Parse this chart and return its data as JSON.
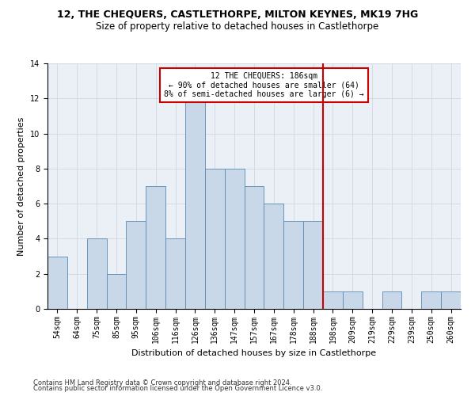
{
  "title": "12, THE CHEQUERS, CASTLETHORPE, MILTON KEYNES, MK19 7HG",
  "subtitle": "Size of property relative to detached houses in Castlethorpe",
  "xlabel": "Distribution of detached houses by size in Castlethorpe",
  "ylabel": "Number of detached properties",
  "footer_line1": "Contains HM Land Registry data © Crown copyright and database right 2024.",
  "footer_line2": "Contains public sector information licensed under the Open Government Licence v3.0.",
  "categories": [
    "54sqm",
    "64sqm",
    "75sqm",
    "85sqm",
    "95sqm",
    "106sqm",
    "116sqm",
    "126sqm",
    "136sqm",
    "147sqm",
    "157sqm",
    "167sqm",
    "178sqm",
    "188sqm",
    "198sqm",
    "209sqm",
    "219sqm",
    "229sqm",
    "239sqm",
    "250sqm",
    "260sqm"
  ],
  "values": [
    3,
    0,
    4,
    2,
    5,
    7,
    4,
    12,
    8,
    8,
    7,
    6,
    5,
    5,
    1,
    1,
    0,
    1,
    0,
    1,
    1
  ],
  "bar_color": "#c8d8e8",
  "bar_edge_color": "#5a8ab0",
  "grid_color": "#d0d8e0",
  "background_color": "#eaf0f6",
  "vline_x": 13.5,
  "vline_color": "#cc0000",
  "annotation_text": "12 THE CHEQUERS: 186sqm\n← 90% of detached houses are smaller (64)\n8% of semi-detached houses are larger (6) →",
  "annotation_box_color": "#cc0000",
  "ylim": [
    0,
    14
  ],
  "yticks": [
    0,
    2,
    4,
    6,
    8,
    10,
    12,
    14
  ],
  "title_fontsize": 9,
  "subtitle_fontsize": 8.5,
  "xlabel_fontsize": 8,
  "ylabel_fontsize": 8,
  "tick_fontsize": 7,
  "annotation_fontsize": 7,
  "footer_fontsize": 6
}
